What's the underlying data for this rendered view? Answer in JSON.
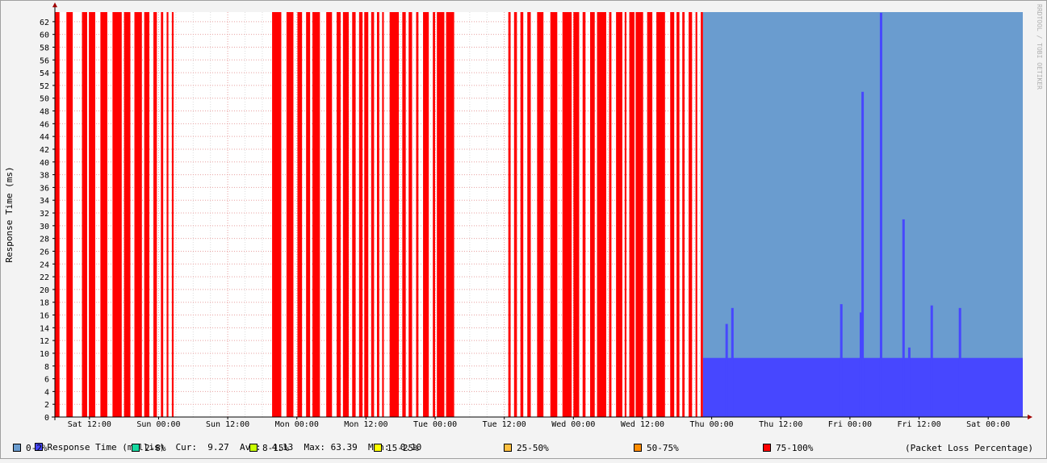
{
  "chart_data": {
    "type": "bar",
    "ylabel": "Response Time (ms)",
    "watermark": "RRDTOOL / TOBI OETIKER",
    "ylim": [
      0,
      63.5
    ],
    "y_ticks": [
      0,
      2,
      4,
      6,
      8,
      10,
      12,
      14,
      16,
      18,
      20,
      22,
      24,
      26,
      28,
      30,
      32,
      34,
      36,
      38,
      40,
      42,
      44,
      46,
      48,
      50,
      52,
      54,
      56,
      58,
      60,
      62
    ],
    "x_ticks": [
      "Sat 12:00",
      "Sun 00:00",
      "Sun 12:00",
      "Mon 00:00",
      "Mon 12:00",
      "Tue 00:00",
      "Tue 12:00",
      "Wed 00:00",
      "Wed 12:00",
      "Thu 00:00",
      "Thu 12:00",
      "Fri 00:00",
      "Fri 12:00",
      "Sat 00:00"
    ],
    "x_hours_start": 0,
    "x_hours_end": 168,
    "tick_hours": [
      6,
      18,
      30,
      42,
      54,
      66,
      78,
      90,
      102,
      114,
      126,
      138,
      150,
      162
    ],
    "grid": true,
    "loss_100_intervals_hours": [
      [
        0.0,
        0.8
      ],
      [
        2.0,
        3.1
      ],
      [
        4.7,
        5.6
      ],
      [
        5.9,
        7.0
      ],
      [
        7.9,
        9.1
      ],
      [
        10.0,
        11.6
      ],
      [
        12.0,
        13.1
      ],
      [
        13.8,
        15.1
      ],
      [
        15.5,
        16.4
      ],
      [
        17.1,
        17.7
      ],
      [
        18.4,
        18.8
      ],
      [
        19.4,
        19.7
      ],
      [
        20.3,
        20.6
      ],
      [
        37.7,
        39.3
      ],
      [
        40.2,
        41.4
      ],
      [
        42.1,
        42.9
      ],
      [
        43.6,
        44.3
      ],
      [
        44.7,
        46.0
      ],
      [
        47.1,
        48.1
      ],
      [
        48.9,
        49.6
      ],
      [
        50.0,
        51.0
      ],
      [
        51.6,
        52.2
      ],
      [
        52.8,
        53.4
      ],
      [
        53.7,
        54.4
      ],
      [
        54.9,
        55.4
      ],
      [
        55.9,
        56.3
      ],
      [
        56.8,
        57.1
      ],
      [
        58.1,
        59.7
      ],
      [
        60.3,
        60.9
      ],
      [
        61.4,
        62.0
      ],
      [
        62.7,
        63.1
      ],
      [
        63.9,
        64.9
      ],
      [
        65.6,
        66.0
      ],
      [
        66.3,
        67.6
      ],
      [
        67.9,
        69.3
      ],
      [
        78.7,
        79.1
      ],
      [
        79.7,
        80.2
      ],
      [
        80.8,
        81.3
      ],
      [
        82.0,
        82.6
      ],
      [
        83.7,
        84.8
      ],
      [
        86.0,
        87.2
      ],
      [
        88.1,
        89.7
      ],
      [
        90.0,
        91.0
      ],
      [
        91.6,
        92.1
      ],
      [
        92.9,
        93.7
      ],
      [
        94.1,
        95.7
      ],
      [
        96.2,
        96.6
      ],
      [
        97.4,
        98.5
      ],
      [
        98.9,
        99.2
      ],
      [
        99.7,
        100.6
      ],
      [
        100.8,
        102.1
      ],
      [
        102.8,
        103.7
      ],
      [
        104.4,
        105.9
      ],
      [
        106.8,
        107.5
      ],
      [
        107.9,
        108.4
      ],
      [
        108.9,
        109.3
      ],
      [
        110.0,
        110.6
      ],
      [
        111.2,
        111.5
      ],
      [
        112.1,
        112.5
      ]
    ],
    "loss_low_intervals_hours": [
      [
        112.5,
        168.0
      ]
    ],
    "response_baseline_ms": 9.27,
    "response_spikes": [
      {
        "hour": 116.6,
        "value": 14.6
      },
      {
        "hour": 117.6,
        "value": 17.1
      },
      {
        "hour": 136.5,
        "value": 17.7
      },
      {
        "hour": 139.9,
        "value": 16.4
      },
      {
        "hour": 140.2,
        "value": 51.0
      },
      {
        "hour": 143.4,
        "value": 63.39
      },
      {
        "hour": 147.3,
        "value": 31.0
      },
      {
        "hour": 148.3,
        "value": 10.9
      },
      {
        "hour": 152.2,
        "value": 17.5
      },
      {
        "hour": 157.1,
        "value": 17.1
      }
    ]
  },
  "legend": {
    "response_label": "Response Time (millis)",
    "cur_label": "Cur:",
    "cur_value": "9.27",
    "avg_label": "Avg:",
    "avg_value": "4.13",
    "max_label": "Max:",
    "max_value": "63.39",
    "min_label": "Min:",
    "min_value": "0.10",
    "loss_bins": [
      {
        "label": "0-2%",
        "color": "#6a9ccf"
      },
      {
        "label": "2-8%",
        "color": "#17d9a0"
      },
      {
        "label": "8-15%",
        "color": "#c8ff00"
      },
      {
        "label": "15-25%",
        "color": "#ffff00"
      },
      {
        "label": "25-50%",
        "color": "#ffc040"
      },
      {
        "label": "50-75%",
        "color": "#ff8c00"
      },
      {
        "label": "75-100%",
        "color": "#ff0000"
      }
    ],
    "loss_note": "(Packet Loss Percentage)"
  },
  "colors": {
    "response": "#4747ff",
    "loss_full": "#ff0000",
    "loss_low": "#6a9ccf",
    "plot_bg": "#ffffff"
  }
}
